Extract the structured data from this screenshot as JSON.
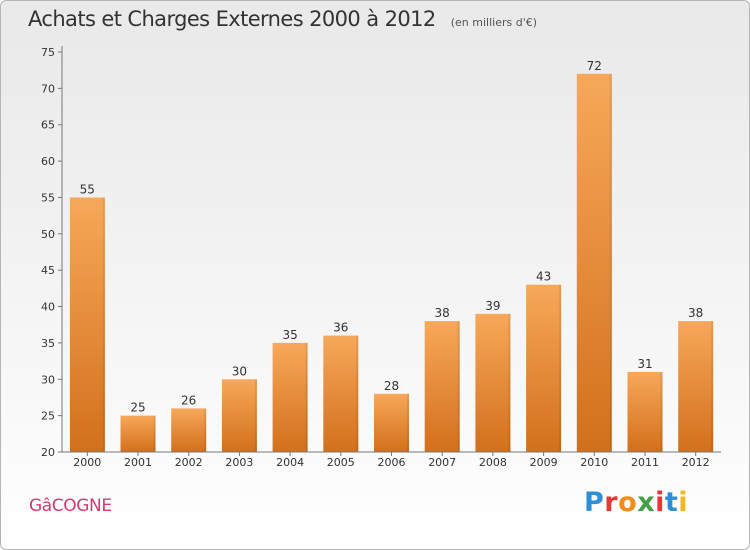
{
  "header": {
    "title": "Achats et Charges Externes 2000 à 2012",
    "unit": "(en milliers d'€)"
  },
  "footer": {
    "place": "GâCOGNE",
    "logo_text": "Proxiti",
    "logo_colors": [
      "#2e8fd6",
      "#e53935",
      "#f28c1a",
      "#43a047",
      "#e53935",
      "#2e8fd6",
      "#f5b71c"
    ]
  },
  "colors": {
    "bar_top": "#f7a85a",
    "bar_bottom": "#d2701c",
    "axis": "#777777",
    "text": "#333333",
    "place": "#d63870"
  },
  "chart_data": {
    "type": "bar",
    "title": "Achats et Charges Externes 2000 à 2012",
    "subtitle": "(en milliers d'€)",
    "categories": [
      "2000",
      "2001",
      "2002",
      "2003",
      "2004",
      "2005",
      "2006",
      "2007",
      "2008",
      "2009",
      "2010",
      "2011",
      "2012"
    ],
    "values": [
      55,
      25,
      26,
      30,
      35,
      36,
      28,
      38,
      39,
      43,
      72,
      31,
      38
    ],
    "ylim": [
      20,
      75
    ],
    "yticks": [
      20,
      25,
      30,
      35,
      40,
      45,
      50,
      55,
      60,
      65,
      70,
      75
    ],
    "grid": false,
    "legend": "none"
  }
}
